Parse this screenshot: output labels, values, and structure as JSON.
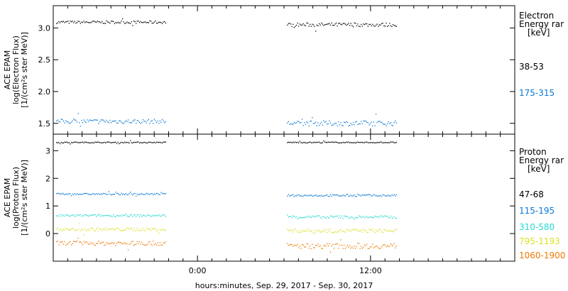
{
  "chart_data": [
    {
      "type": "scatter",
      "title": "",
      "ylabel": [
        "ACE EPAM",
        "log(Electron Flux)",
        "[1/(cm²s ster MeV)]"
      ],
      "ylabel_display": [
        "ACE EPAM",
        "log(Electron Flux)",
        "[1/(cm²s ster MeV)]"
      ],
      "ylim": [
        1.33,
        3.35
      ],
      "yticks": [
        1.5,
        2.0,
        2.5,
        3.0
      ],
      "ytick_labels": [
        "1.5",
        "2.0",
        "2.5",
        "3.0"
      ],
      "legend_title": [
        "Electron",
        "Energy ranges",
        "[keV]"
      ],
      "legend_title_display": [
        "Electron",
        "Energy rar",
        "[keV]"
      ],
      "series": [
        {
          "name": "38-53",
          "color": "#000000",
          "segments": [
            {
              "x": [
                -9.8,
                -2.2
              ],
              "y": 3.09,
              "jitter": 0.022
            },
            {
              "x": [
                6.2,
                13.8
              ],
              "y": 3.05,
              "jitter": 0.03
            }
          ]
        },
        {
          "name": "175-315",
          "color": "#0a78d6",
          "segments": [
            {
              "x": [
                -9.8,
                -2.2
              ],
              "y": 1.53,
              "jitter": 0.035
            },
            {
              "x": [
                6.2,
                13.8
              ],
              "y": 1.5,
              "jitter": 0.04
            }
          ]
        }
      ]
    },
    {
      "type": "scatter",
      "title": "",
      "ylabel": [
        "ACE EPAM",
        "log(Proton Flux)",
        "[1/(cm²s ster MeV)]"
      ],
      "ylabel_display": [
        "ACE EPAM",
        "log(Proton Flux)",
        "[1/(cm²s ster MeV)]"
      ],
      "ylim": [
        -1.0,
        3.6
      ],
      "yticks": [
        0,
        1,
        2,
        3
      ],
      "ytick_labels": [
        "0",
        "1",
        "2",
        "3"
      ],
      "legend_title": [
        "Proton",
        "Energy ranges",
        "[keV]"
      ],
      "legend_title_display": [
        "Proton",
        "Energy rar",
        "[keV]"
      ],
      "series": [
        {
          "name": "47-68",
          "color": "#000000",
          "segments": [
            {
              "x": [
                -9.8,
                -2.2
              ],
              "y": 3.3,
              "jitter": 0.02
            },
            {
              "x": [
                6.2,
                13.8
              ],
              "y": 3.3,
              "jitter": 0.02
            }
          ]
        },
        {
          "name": "115-195",
          "color": "#0a78d6",
          "segments": [
            {
              "x": [
                -9.8,
                -2.2
              ],
              "y": 1.43,
              "jitter": 0.03
            },
            {
              "x": [
                6.2,
                13.8
              ],
              "y": 1.38,
              "jitter": 0.035
            }
          ]
        },
        {
          "name": "310-580",
          "color": "#22d8d0",
          "segments": [
            {
              "x": [
                -9.8,
                -2.2
              ],
              "y": 0.65,
              "jitter": 0.04
            },
            {
              "x": [
                6.2,
                13.8
              ],
              "y": 0.6,
              "jitter": 0.05
            }
          ]
        },
        {
          "name": "795-1193",
          "color": "#d8e020",
          "segments": [
            {
              "x": [
                -9.8,
                -2.2
              ],
              "y": 0.15,
              "jitter": 0.06
            },
            {
              "x": [
                6.2,
                13.8
              ],
              "y": 0.1,
              "jitter": 0.07
            }
          ]
        },
        {
          "name": "1060-1900",
          "color": "#f07800",
          "segments": [
            {
              "x": [
                -9.8,
                -2.2
              ],
              "y": -0.35,
              "jitter": 0.08
            },
            {
              "x": [
                6.2,
                13.8
              ],
              "y": -0.45,
              "jitter": 0.1
            }
          ]
        }
      ]
    }
  ],
  "x_axis": {
    "xlabel": "hours:minutes, Sep. 29, 2017 - Sep. 30, 2017",
    "xlim": [
      -10,
      22
    ],
    "major_ticks": [
      0,
      12
    ],
    "major_tick_labels": [
      "0:00",
      "12:00"
    ]
  }
}
